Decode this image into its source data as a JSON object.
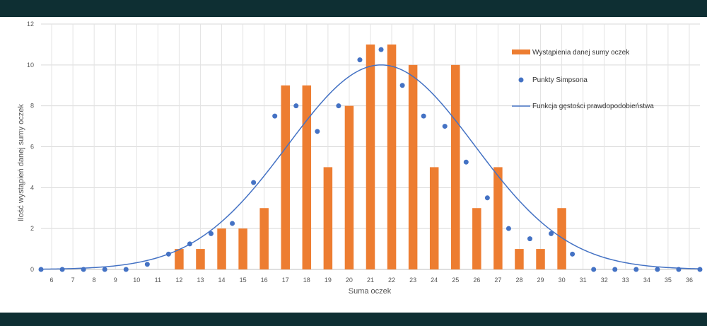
{
  "chart_data": {
    "type": "bar",
    "title": "",
    "xlabel": "Suma oczek",
    "ylabel": "Ilość wystąpień danej sumy oczek",
    "ylim": [
      0,
      12
    ],
    "yticks": [
      "0",
      "2",
      "4",
      "6",
      "8",
      "10",
      "12"
    ],
    "bars": {
      "name": "Wystąpienia danej sumy oczek",
      "color": "#ed7d31",
      "x": [
        6,
        7,
        8,
        9,
        10,
        11,
        12,
        13,
        14,
        15,
        16,
        17,
        18,
        19,
        20,
        21,
        22,
        23,
        24,
        25,
        26,
        27,
        28,
        29,
        30,
        31,
        32,
        33,
        34,
        35,
        36
      ],
      "values": [
        0,
        0,
        0,
        0,
        0,
        0,
        1,
        1,
        2,
        2,
        3,
        9,
        9,
        5,
        8,
        11,
        11,
        10,
        5,
        10,
        3,
        5,
        1,
        1,
        3,
        0,
        0,
        0,
        0,
        0,
        0
      ]
    },
    "points": {
      "name": "Punkty Simpsona",
      "color": "#4472c4",
      "x": [
        5.5,
        6.5,
        7.5,
        8.5,
        9.5,
        10.5,
        11.5,
        12.5,
        13.5,
        14.5,
        15.5,
        16.5,
        17.5,
        18.5,
        19.5,
        20.5,
        21.5,
        22.5,
        23.5,
        24.5,
        25.5,
        26.5,
        27.5,
        28.5,
        29.5,
        30.5,
        31.5,
        32.5,
        33.5,
        34.5,
        35.5,
        36.5
      ],
      "values": [
        0,
        0,
        0,
        0,
        0,
        0.25,
        0.75,
        1.25,
        1.75,
        2.25,
        4.25,
        7.5,
        8,
        6.75,
        8,
        10.25,
        10.75,
        9,
        7.5,
        7,
        5.25,
        3.5,
        2,
        1.5,
        1.75,
        0.75,
        0,
        0,
        0,
        0,
        0,
        0
      ]
    },
    "curve": {
      "name": "Funkcja gęstości prawdopodobieństwa",
      "color": "#4472c4",
      "mean": 21.5,
      "sd": 4.4,
      "peak": 10
    },
    "legend": [
      "Wystąpienia danej sumy oczek",
      "Punkty Simpsona",
      "Funkcja gęstości prawdopodobieństwa"
    ],
    "legend_position": "top-right",
    "grid": true
  }
}
